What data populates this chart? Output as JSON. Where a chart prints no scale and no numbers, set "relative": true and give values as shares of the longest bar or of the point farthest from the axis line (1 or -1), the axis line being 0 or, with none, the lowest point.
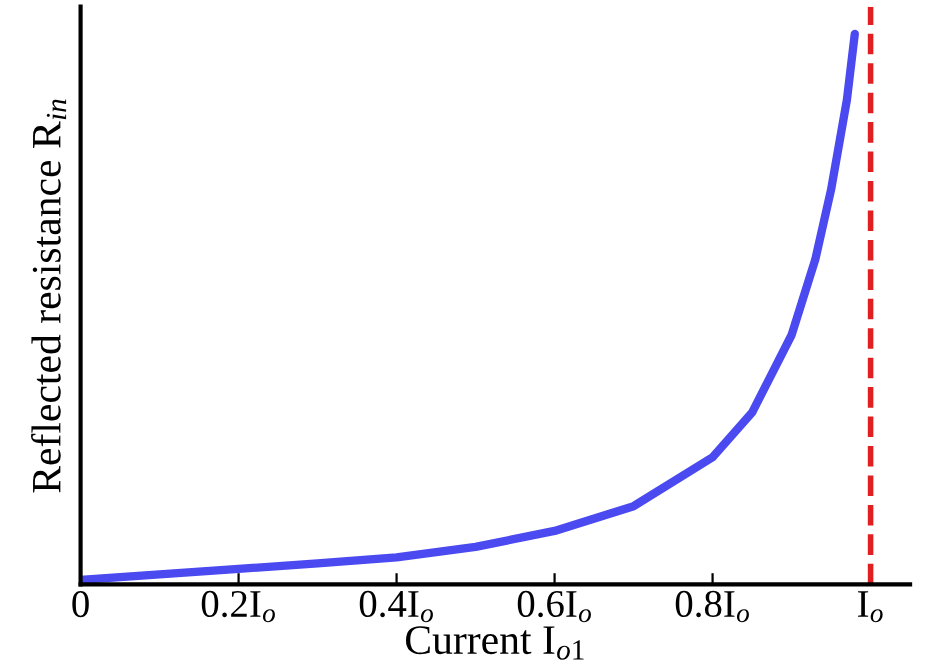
{
  "chart_data": {
    "type": "line",
    "relative": true,
    "xlabel": "Current I$_{o1}$",
    "ylabel": "Reflected resistance R$_{in}$",
    "x": [
      0,
      0.1,
      0.2,
      0.3,
      0.4,
      0.5,
      0.6,
      0.7,
      0.8,
      0.85,
      0.9,
      0.93,
      0.95,
      0.97,
      0.98
    ],
    "series": [
      {
        "color": "#4a4af0",
        "values": [
          0.008,
          0.018,
          0.028,
          0.038,
          0.049,
          0.068,
          0.097,
          0.142,
          0.231,
          0.312,
          0.453,
          0.59,
          0.717,
          0.88,
          1.0
        ]
      }
    ],
    "xlim": [
      0,
      1.05
    ],
    "xticks": [
      0,
      {
        "value": 0.2,
        "label": "0.2I$_{o}$"
      },
      {
        "value": 0.4,
        "label": "0.4I$_{o}$"
      },
      {
        "value": 0.6,
        "label": "0.6I$_{o}$"
      },
      {
        "value": 0.8,
        "label": "0.8I$_{o}$"
      },
      {
        "value": 1,
        "label": "I$_{o}$"
      }
    ],
    "ref_lines": [
      {
        "axis": "x",
        "value": 1,
        "color": "#e02020",
        "line_style": "dashed"
      }
    ],
    "grid": false,
    "legend": false,
    "marker": "none",
    "line_style": "solid"
  }
}
